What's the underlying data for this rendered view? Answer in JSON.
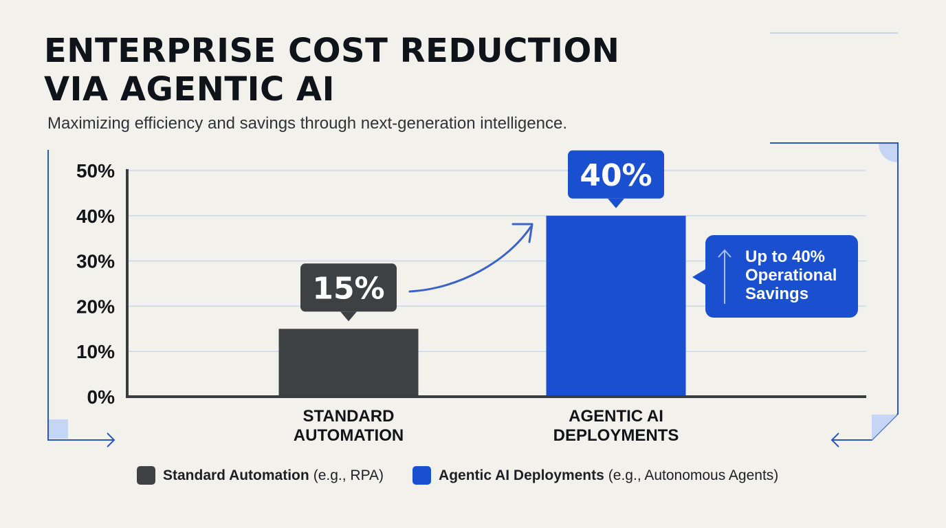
{
  "title_lines": [
    "ENTERPRISE COST REDUCTION",
    "VIA AGENTIC AI"
  ],
  "subtitle": "Maximizing efficiency and savings through next-generation intelligence.",
  "colors": {
    "background": "#f2f1ec",
    "standard": "#3e4143",
    "agentic": "#1a4fcf",
    "gridline": "#c9d6ee",
    "accent_line": "#2b55c2"
  },
  "chart_data": {
    "type": "bar",
    "categories": [
      [
        "STANDARD",
        "AUTOMATION"
      ],
      [
        "AGENTIC AI",
        "DEPLOYMENTS"
      ]
    ],
    "values": [
      15,
      40
    ],
    "data_labels": [
      "15%",
      "40%"
    ],
    "ylim": [
      0,
      50
    ],
    "yticks": [
      0,
      10,
      20,
      30,
      40,
      50
    ],
    "ytick_labels": [
      "0%",
      "10%",
      "20%",
      "30%",
      "40%",
      "50%"
    ],
    "grid": true,
    "legend_placement": "bottom"
  },
  "callout": {
    "icon": "up-arrow-icon",
    "lines": [
      "Up to 40%",
      "Operational",
      "Savings"
    ]
  },
  "legend": [
    {
      "bold": "Standard Automation",
      "detail": "(e.g., RPA)",
      "color": "#3e4143"
    },
    {
      "bold": "Agentic AI Deployments",
      "detail": "(e.g., Autonomous Agents)",
      "color": "#1a4fcf"
    }
  ]
}
